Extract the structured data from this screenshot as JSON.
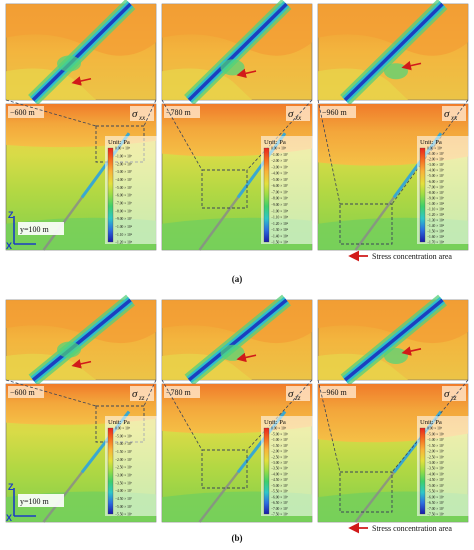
{
  "figure": {
    "parts": [
      {
        "label": "(a)",
        "stress_symbol": "σxx",
        "stress_main": "σ",
        "stress_sub": "xx",
        "panels": [
          {
            "depth": "−600 m",
            "legend_unit": "Unit: Pa",
            "ticks": [
              "0.00 × 10⁰",
              "−1.00 × 10⁷",
              "−2.00 × 10⁷",
              "−3.00 × 10⁷",
              "−4.00 × 10⁷",
              "−5.00 × 10⁷",
              "−6.00 × 10⁷",
              "−7.00 × 10⁷",
              "−8.00 × 10⁷",
              "−9.00 × 10⁷",
              "−1.00 × 10⁸",
              "−1.10 × 10⁸",
              "−1.20 × 10⁸"
            ]
          },
          {
            "depth": "−780 m",
            "legend_unit": "Unit: Pa",
            "ticks": [
              "0.00 × 10⁰",
              "−1.00 × 10⁷",
              "−2.00 × 10⁷",
              "−3.00 × 10⁷",
              "−4.00 × 10⁷",
              "−5.00 × 10⁷",
              "−6.00 × 10⁷",
              "−7.00 × 10⁷",
              "−8.00 × 10⁷",
              "−9.00 × 10⁷",
              "−1.00 × 10⁸",
              "−1.10 × 10⁸",
              "−1.20 × 10⁸",
              "−1.30 × 10⁸",
              "−1.40 × 10⁸",
              "−1.50 × 10⁸"
            ]
          },
          {
            "depth": "−960 m",
            "legend_unit": "Unit: Pa",
            "ticks": [
              "0.00 × 10⁰",
              "−1.00 × 10⁷",
              "−2.00 × 10⁷",
              "−3.00 × 10⁷",
              "−4.00 × 10⁷",
              "−5.00 × 10⁷",
              "−6.00 × 10⁷",
              "−7.00 × 10⁷",
              "−8.00 × 10⁷",
              "−9.00 × 10⁷",
              "−1.00 × 10⁸",
              "−1.10 × 10⁸",
              "−1.20 × 10⁸",
              "−1.30 × 10⁸",
              "−1.40 × 10⁸",
              "−1.50 × 10⁸",
              "−1.60 × 10⁸",
              "−1.70 × 10⁸"
            ]
          }
        ]
      },
      {
        "label": "(b)",
        "stress_symbol": "σzz",
        "stress_main": "σ",
        "stress_sub": "zz",
        "panels": [
          {
            "depth": "−600 m",
            "legend_unit": "Unit: Pa",
            "ticks": [
              "0.00 × 10⁰",
              "−5.00 × 10⁶",
              "−1.00 × 10⁷",
              "−1.50 × 10⁷",
              "−2.00 × 10⁷",
              "−2.50 × 10⁷",
              "−3.00 × 10⁷",
              "−3.50 × 10⁷",
              "−4.00 × 10⁷",
              "−4.50 × 10⁷",
              "−5.00 × 10⁷",
              "−5.50 × 10⁷"
            ]
          },
          {
            "depth": "−780 m",
            "legend_unit": "Unit: Pa",
            "ticks": [
              "0.00 × 10⁰",
              "−5.00 × 10⁶",
              "−1.00 × 10⁷",
              "−1.50 × 10⁷",
              "−2.00 × 10⁷",
              "−2.50 × 10⁷",
              "−3.00 × 10⁷",
              "−3.50 × 10⁷",
              "−4.00 × 10⁷",
              "−4.50 × 10⁷",
              "−5.00 × 10⁷",
              "−5.50 × 10⁷",
              "−6.00 × 10⁷",
              "−6.50 × 10⁷",
              "−7.00 × 10⁷",
              "−7.50 × 10⁷"
            ]
          },
          {
            "depth": "−960 m",
            "legend_unit": "Unit: Pa",
            "ticks": [
              "0.00 × 10⁰",
              "−5.00 × 10⁶",
              "−1.00 × 10⁷",
              "−1.50 × 10⁷",
              "−2.00 × 10⁷",
              "−2.50 × 10⁷",
              "−3.00 × 10⁷",
              "−3.50 × 10⁷",
              "−4.00 × 10⁷",
              "−4.50 × 10⁷",
              "−5.00 × 10⁷",
              "−5.50 × 10⁷",
              "−6.00 × 10⁷",
              "−6.50 × 10⁷",
              "−7.00 × 10⁷",
              "−7.50 × 10⁷"
            ]
          }
        ]
      }
    ],
    "axes": {
      "z": "Z",
      "x": "X",
      "y_label": "y=100 m"
    },
    "stress_note": "Stress concentration area",
    "colors": {
      "arrow": "#d11a1a",
      "dash": "#3b4458",
      "background": "#f2a53a"
    }
  }
}
